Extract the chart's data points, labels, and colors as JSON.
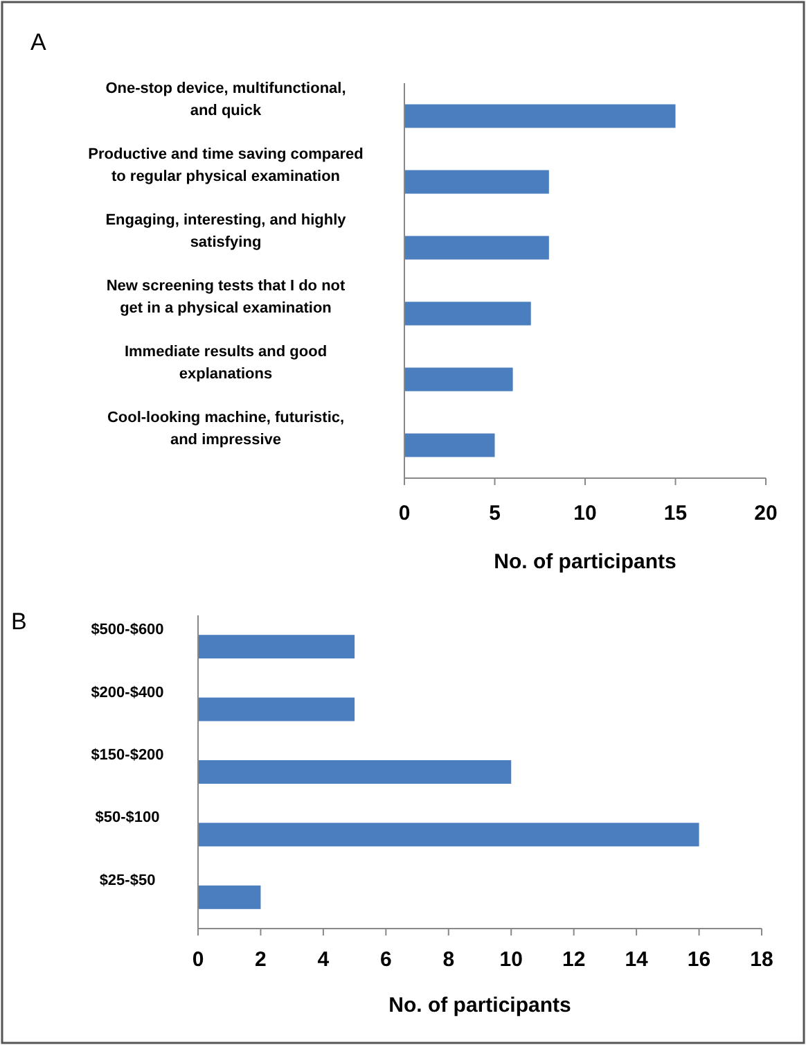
{
  "chart_data": [
    {
      "type": "bar",
      "orientation": "horizontal",
      "title": "A",
      "xlabel": "No. of participants",
      "categories": [
        "One-stop device, multifunctional, and quick",
        "Productive and time saving compared to regular physical examination",
        "Engaging, interesting, and highly satisfying",
        "New screening tests that I do not get in a physical examination",
        "Immediate results and good explanations",
        "Cool-looking machine, futuristic, and impressive"
      ],
      "values": [
        15,
        8,
        8,
        7,
        6,
        5
      ],
      "color": "#4a7ebf",
      "xlim": [
        0,
        20
      ],
      "xticks": [
        0,
        5,
        10,
        15,
        20
      ],
      "grid": false
    },
    {
      "type": "bar",
      "orientation": "horizontal",
      "title": "B",
      "xlabel": "No. of participants",
      "categories": [
        "$500-$600",
        "$200-$400",
        "$150-$200",
        "$50-$100",
        "$25-$50"
      ],
      "values": [
        5,
        5,
        10,
        16,
        2
      ],
      "color": "#4a7ebf",
      "xlim": [
        0,
        18
      ],
      "xticks": [
        0,
        2,
        4,
        6,
        8,
        10,
        12,
        14,
        16,
        18
      ],
      "grid": false
    }
  ]
}
